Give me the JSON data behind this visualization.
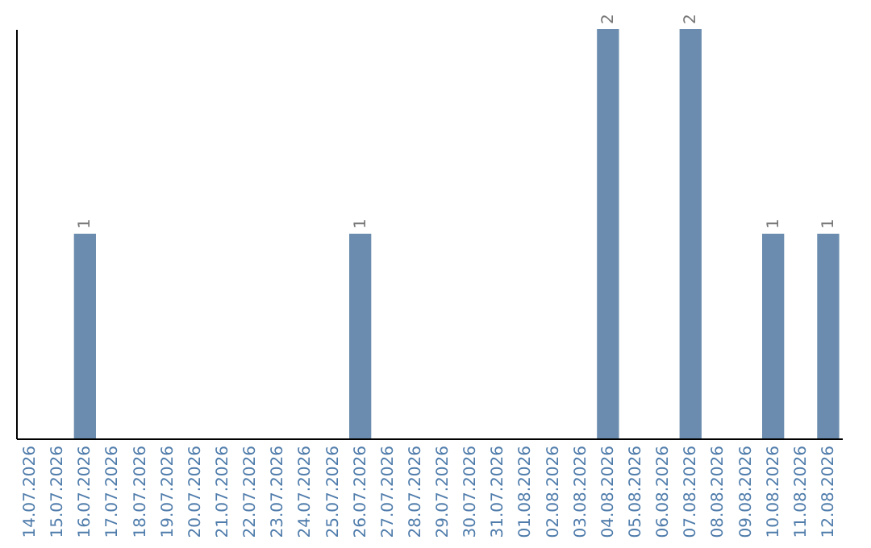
{
  "chart_data": {
    "type": "bar",
    "categories": [
      "14.07.2026",
      "15.07.2026",
      "16.07.2026",
      "17.07.2026",
      "18.07.2026",
      "19.07.2026",
      "20.07.2026",
      "21.07.2026",
      "22.07.2026",
      "23.07.2026",
      "24.07.2026",
      "25.07.2026",
      "26.07.2026",
      "27.07.2026",
      "28.07.2026",
      "29.07.2026",
      "30.07.2026",
      "31.07.2026",
      "01.08.2026",
      "02.08.2026",
      "03.08.2026",
      "04.08.2026",
      "05.08.2026",
      "06.08.2026",
      "07.08.2026",
      "08.08.2026",
      "09.08.2026",
      "10.08.2026",
      "11.08.2026",
      "12.08.2026"
    ],
    "values": [
      0,
      0,
      1,
      0,
      0,
      0,
      0,
      0,
      0,
      0,
      0,
      0,
      1,
      0,
      0,
      0,
      0,
      0,
      0,
      0,
      0,
      2,
      0,
      0,
      2,
      0,
      0,
      1,
      0,
      1
    ],
    "value_labels": [
      null,
      null,
      "1",
      null,
      null,
      null,
      null,
      null,
      null,
      null,
      null,
      null,
      "1",
      null,
      null,
      null,
      null,
      null,
      null,
      null,
      null,
      "2",
      null,
      null,
      "2",
      null,
      null,
      "1",
      null,
      "1"
    ],
    "color": "#6b8cae",
    "ylim": [
      0,
      2
    ],
    "grid": false,
    "tick_labels": "x"
  }
}
